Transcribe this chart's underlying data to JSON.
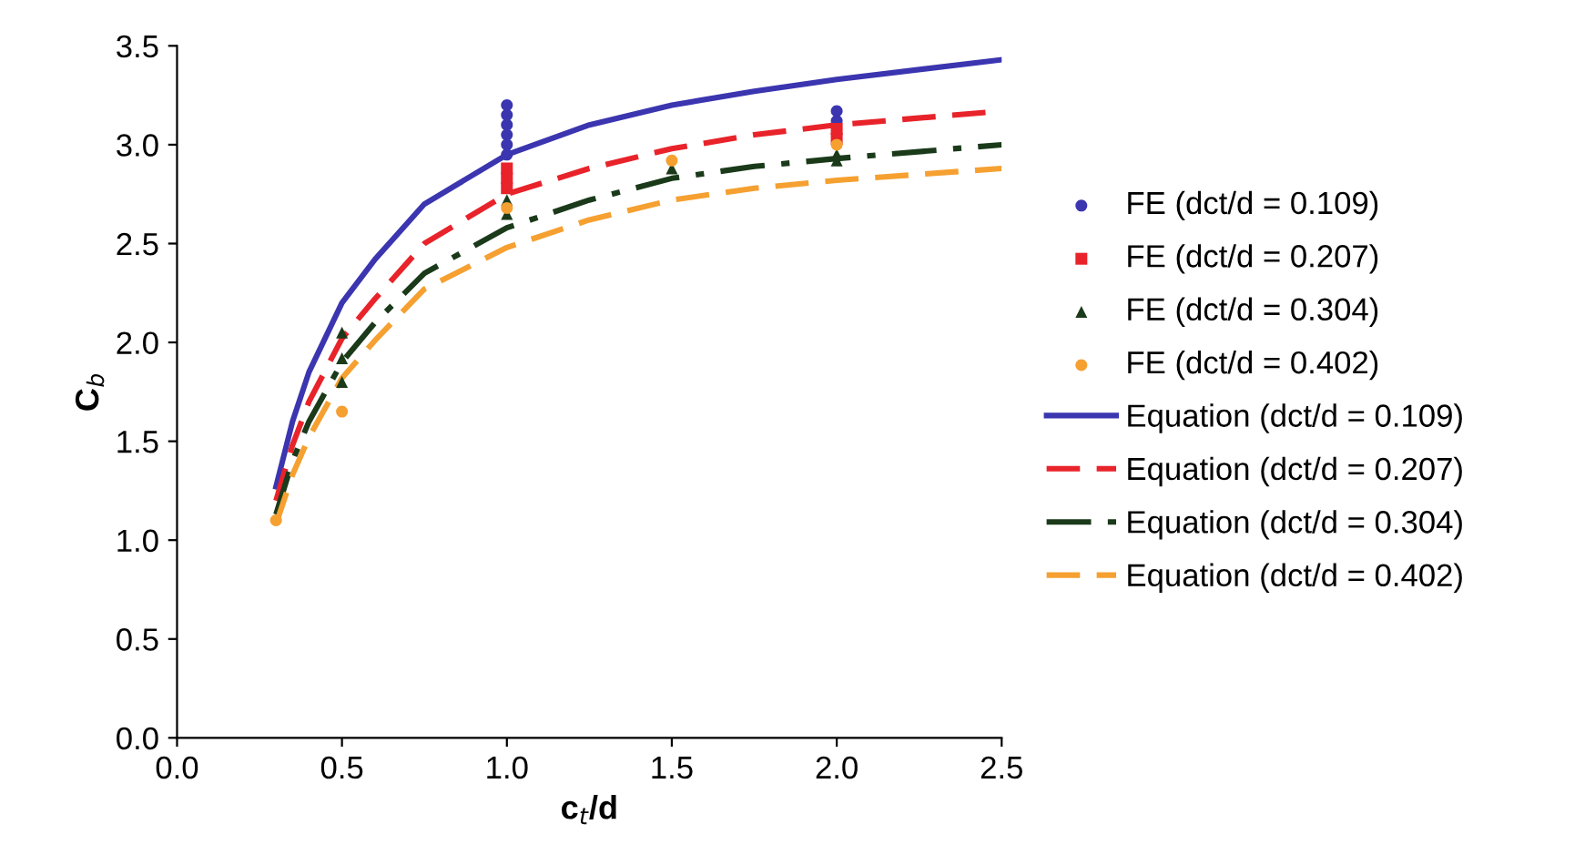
{
  "chart_data": {
    "type": "scatter",
    "xlabel": "c$_{t}$/d",
    "ylabel": "C$_{b}$",
    "xlim": [
      0.0,
      2.5
    ],
    "ylim": [
      0.0,
      3.5
    ],
    "xticks": [
      {
        "value": 0,
        "label": "0.0"
      },
      0.5,
      {
        "value": 1,
        "label": "1.0"
      },
      1.5,
      {
        "value": 2,
        "label": "2.0"
      },
      2.5
    ],
    "yticks": [
      {
        "value": 0,
        "label": "0.0"
      },
      0.5,
      {
        "value": 1,
        "label": "1.0"
      },
      1.5,
      {
        "value": 2,
        "label": "2.0"
      },
      2.5,
      {
        "value": 3,
        "label": "3.0"
      },
      3.5
    ],
    "legend": "right",
    "series": [
      {
        "name": "FE (dct/d = 0.109)",
        "marker": "circle",
        "color": "#3b35b0",
        "x": [
          1,
          1,
          1,
          1,
          1,
          1,
          2,
          2
        ],
        "values": [
          3.2,
          3.15,
          3.1,
          3.05,
          3.0,
          2.95,
          3.17,
          3.12
        ]
      },
      {
        "name": "FE (dct/d = 0.207)",
        "marker": "square",
        "color": "#e8232a",
        "x": [
          1,
          1,
          1,
          2,
          2
        ],
        "values": [
          2.88,
          2.83,
          2.78,
          3.08,
          3.03
        ]
      },
      {
        "name": "FE (dct/d = 0.304)",
        "marker": "triangle",
        "color": "#1a3a1a",
        "x": [
          0.5,
          0.5,
          0.5,
          1,
          1,
          1.5,
          2,
          2
        ],
        "values": [
          2.05,
          1.92,
          1.8,
          2.72,
          2.65,
          2.88,
          2.95,
          2.92
        ]
      },
      {
        "name": "FE (dct/d = 0.402)",
        "marker": "circle",
        "color": "#f5a030",
        "x": [
          0.3,
          0.5,
          1,
          1.5,
          2
        ],
        "values": [
          1.1,
          1.65,
          2.68,
          2.92,
          3.0
        ]
      },
      {
        "name": "Equation (dct/d = 0.109)",
        "type": "line",
        "line_style": "solid",
        "color": "#3b35b0",
        "x": [
          0.3,
          0.35,
          0.4,
          0.5,
          0.6,
          0.75,
          1.0,
          1.25,
          1.5,
          1.75,
          2.0,
          2.5
        ],
        "values": [
          1.27,
          1.6,
          1.85,
          2.2,
          2.42,
          2.7,
          2.95,
          3.1,
          3.2,
          3.27,
          3.33,
          3.43
        ]
      },
      {
        "name": "Equation (dct/d = 0.207)",
        "type": "line",
        "line_style": "dashed",
        "color": "#e8232a",
        "x": [
          0.3,
          0.35,
          0.4,
          0.5,
          0.6,
          0.75,
          1.0,
          1.25,
          1.5,
          1.75,
          2.0,
          2.5
        ],
        "values": [
          1.2,
          1.48,
          1.7,
          2.02,
          2.22,
          2.5,
          2.75,
          2.88,
          2.98,
          3.05,
          3.1,
          3.17
        ]
      },
      {
        "name": "Equation (dct/d = 0.304)",
        "type": "line",
        "line_style": "dashdot",
        "color": "#1a3a1a",
        "x": [
          0.3,
          0.35,
          0.4,
          0.5,
          0.6,
          0.75,
          1.0,
          1.25,
          1.5,
          1.75,
          2.0,
          2.5
        ],
        "values": [
          1.13,
          1.4,
          1.6,
          1.9,
          2.1,
          2.35,
          2.58,
          2.72,
          2.83,
          2.89,
          2.93,
          3.0
        ]
      },
      {
        "name": "Equation (dct/d = 0.402)",
        "type": "line",
        "line_style": "dashed",
        "color": "#f5a030",
        "x": [
          0.3,
          0.35,
          0.4,
          0.5,
          0.6,
          0.75,
          1.0,
          1.25,
          1.5,
          1.75,
          2.0,
          2.5
        ],
        "values": [
          1.08,
          1.33,
          1.52,
          1.82,
          2.01,
          2.27,
          2.48,
          2.62,
          2.72,
          2.78,
          2.82,
          2.88
        ]
      }
    ]
  }
}
